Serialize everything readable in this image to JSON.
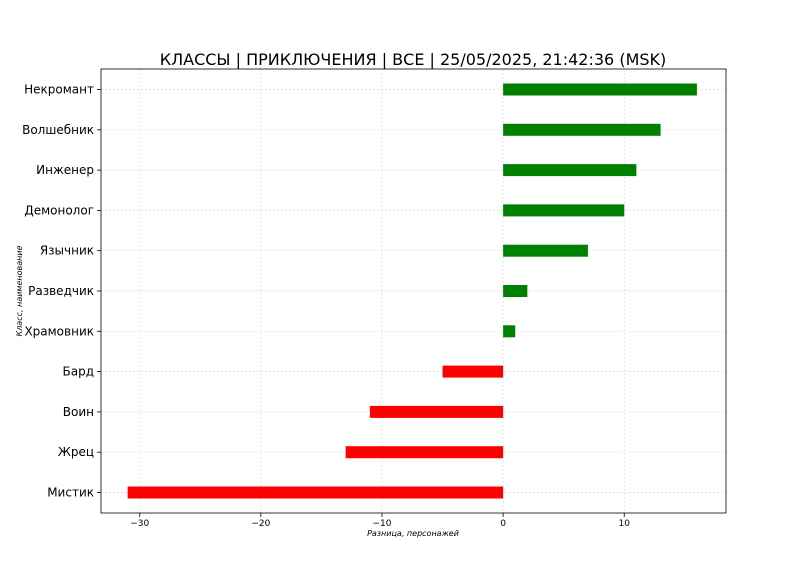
{
  "chart_data": {
    "type": "bar",
    "orientation": "horizontal",
    "title": "КЛАССЫ | ПРИКЛЮЧЕНИЯ | ВСЕ | 25/05/2025, 21:42:36 (MSK)",
    "xlabel": "Разница, персонажей",
    "ylabel": "Класс, наименование",
    "xlim": [
      -33.2,
      18.4
    ],
    "xticks": [
      -30,
      -20,
      -10,
      0,
      10
    ],
    "xtick_labels": [
      "−30",
      "−20",
      "−10",
      "0",
      "10"
    ],
    "grid": true,
    "categories": [
      "Некромант",
      "Волшебник",
      "Инженер",
      "Демонолог",
      "Язычник",
      "Разведчик",
      "Храмовник",
      "Бард",
      "Воин",
      "Жрец",
      "Мистик"
    ],
    "values": [
      16,
      13,
      11,
      10,
      7,
      2,
      1,
      -5,
      -11,
      -13,
      -31
    ],
    "colors": {
      "positive": "#008000",
      "negative": "#ff0000"
    }
  }
}
